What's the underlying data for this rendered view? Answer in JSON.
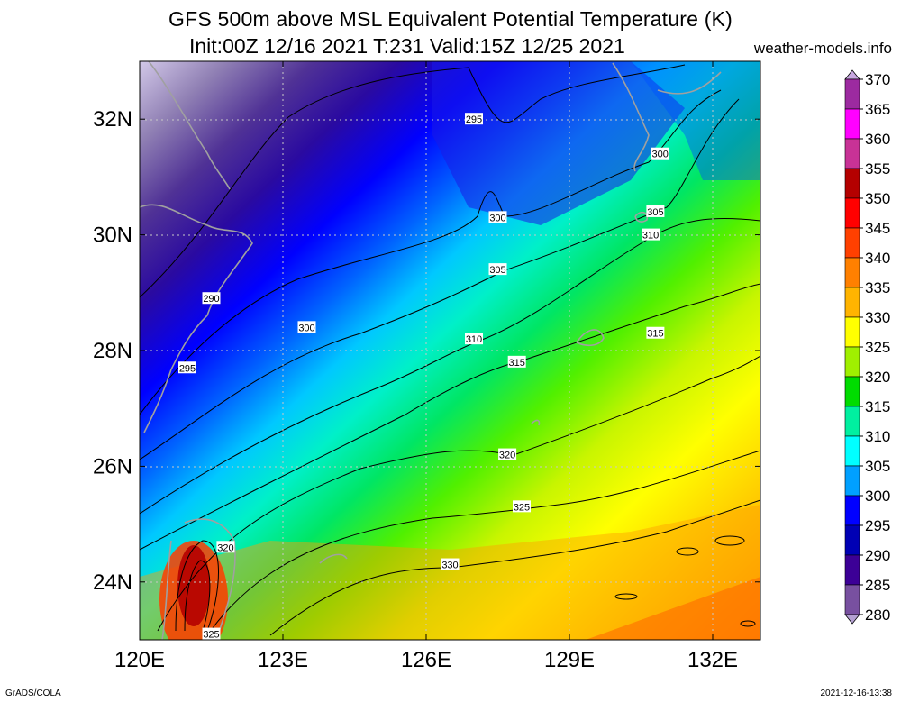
{
  "header": {
    "title_line1": "GFS 500m above MSL Equivalent Potential Temperature (K)",
    "title_line2": "Init:00Z 12/16 2021 T:231 Valid:15Z 12/25 2021",
    "site": "weather-models.info"
  },
  "footer": {
    "left": "GrADS/COLA",
    "right": "2021-12-16-13:38"
  },
  "map": {
    "lon_range": [
      120,
      133
    ],
    "lat_range": [
      23,
      33
    ],
    "lon_ticks": [
      {
        "value": 120,
        "label": "120E"
      },
      {
        "value": 123,
        "label": "123E"
      },
      {
        "value": 126,
        "label": "126E"
      },
      {
        "value": 129,
        "label": "129E"
      },
      {
        "value": 132,
        "label": "132E"
      }
    ],
    "lat_ticks": [
      {
        "value": 24,
        "label": "24N"
      },
      {
        "value": 26,
        "label": "26N"
      },
      {
        "value": 28,
        "label": "28N"
      },
      {
        "value": 30,
        "label": "30N"
      },
      {
        "value": 32,
        "label": "32N"
      }
    ],
    "contour_labels": [
      {
        "text": "295",
        "lon": 127.0,
        "lat": 32.0
      },
      {
        "text": "300",
        "lon": 130.9,
        "lat": 31.4
      },
      {
        "text": "300",
        "lon": 127.5,
        "lat": 30.3
      },
      {
        "text": "305",
        "lon": 130.8,
        "lat": 30.4
      },
      {
        "text": "310",
        "lon": 130.7,
        "lat": 30.0
      },
      {
        "text": "305",
        "lon": 127.5,
        "lat": 29.4
      },
      {
        "text": "290",
        "lon": 121.5,
        "lat": 28.9
      },
      {
        "text": "300",
        "lon": 123.5,
        "lat": 28.4
      },
      {
        "text": "310",
        "lon": 127.0,
        "lat": 28.2
      },
      {
        "text": "315",
        "lon": 130.8,
        "lat": 28.3
      },
      {
        "text": "315",
        "lon": 127.9,
        "lat": 27.8
      },
      {
        "text": "295",
        "lon": 121.0,
        "lat": 27.7
      },
      {
        "text": "320",
        "lon": 127.7,
        "lat": 26.2
      },
      {
        "text": "325",
        "lon": 128.0,
        "lat": 25.3
      },
      {
        "text": "320",
        "lon": 121.8,
        "lat": 24.6
      },
      {
        "text": "330",
        "lon": 126.5,
        "lat": 24.3
      },
      {
        "text": "325",
        "lon": 121.5,
        "lat": 23.1
      }
    ]
  },
  "colorbar": {
    "levels": [
      "370",
      "365",
      "360",
      "355",
      "350",
      "345",
      "340",
      "335",
      "330",
      "325",
      "320",
      "315",
      "310",
      "305",
      "300",
      "295",
      "290",
      "285",
      "280"
    ],
    "colors": [
      "#c8a8e0",
      "#9c2aa0",
      "#ff00ff",
      "#c83296",
      "#b40000",
      "#ff0000",
      "#ff4000",
      "#ff8000",
      "#ffb400",
      "#ffff00",
      "#a0f000",
      "#00dc00",
      "#00f0a0",
      "#00ffff",
      "#00a0ff",
      "#0000ff",
      "#0000b4",
      "#3c0096",
      "#7850a0",
      "#b4a0d2"
    ]
  }
}
